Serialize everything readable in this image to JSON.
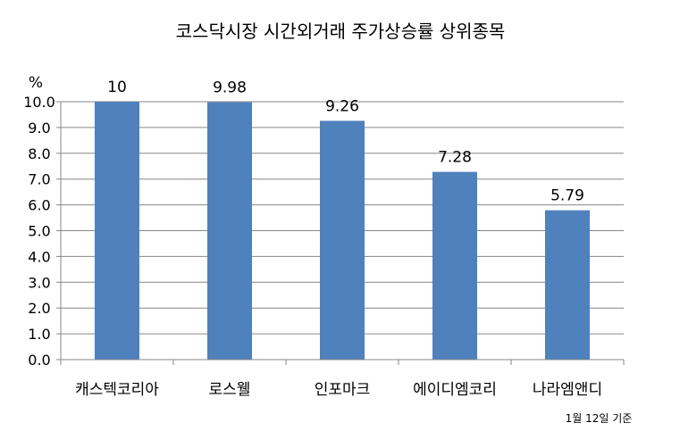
{
  "chart_data": {
    "type": "bar",
    "title": "코스닥시장 시간외거래  주가상승률 상위종목",
    "ylabel": "%",
    "xlabel": "",
    "categories": [
      "캐스텍코리아",
      "로스웰",
      "인포마크",
      "에이디엠코리",
      "나라엠앤디"
    ],
    "values": [
      10,
      9.98,
      9.26,
      7.28,
      5.79
    ],
    "data_labels": [
      "10",
      "9.98",
      "9.26",
      "7.28",
      "5.79"
    ],
    "ylim": [
      0,
      10
    ],
    "y_ticks": [
      "0.0",
      "1.0",
      "2.0",
      "3.0",
      "4.0",
      "5.0",
      "6.0",
      "7.0",
      "8.0",
      "9.0",
      "10.0"
    ],
    "grid": true,
    "bar_color": "#4f81bd",
    "grid_color": "#868686",
    "note": "1월 12일 기준"
  }
}
